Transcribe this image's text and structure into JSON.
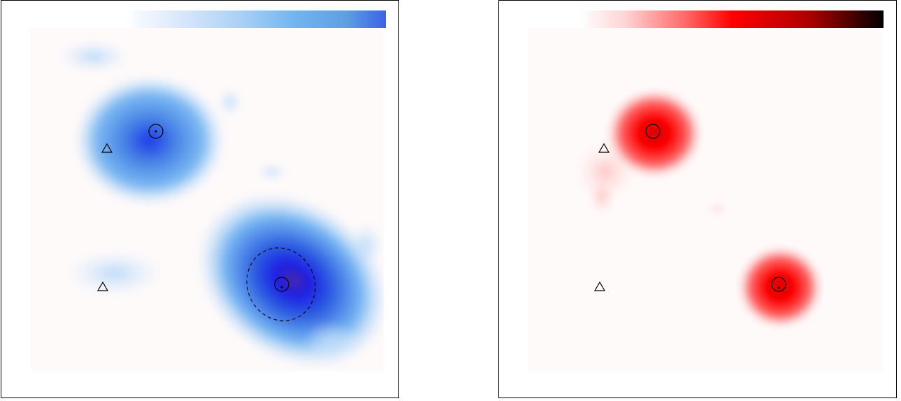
{
  "figure": {
    "panels": [
      {
        "id": "left",
        "colormap": [
          "#ffffff",
          "#dbe9fb",
          "#a9d0f6",
          "#72b5f1",
          "#5e9fe2",
          "#3a63e6"
        ],
        "background": "#fffafa",
        "markers": {
          "circles": 2,
          "triangles": 2,
          "dashed_ellipse": 1
        }
      },
      {
        "id": "right",
        "colormap": [
          "#ffffff",
          "#ffd3d3",
          "#ff6666",
          "#ff0000",
          "#b00000",
          "#000000"
        ],
        "background": "#fffafa",
        "markers": {
          "circles": 2,
          "triangles": 2,
          "dashed_ellipse": 0
        }
      }
    ]
  }
}
